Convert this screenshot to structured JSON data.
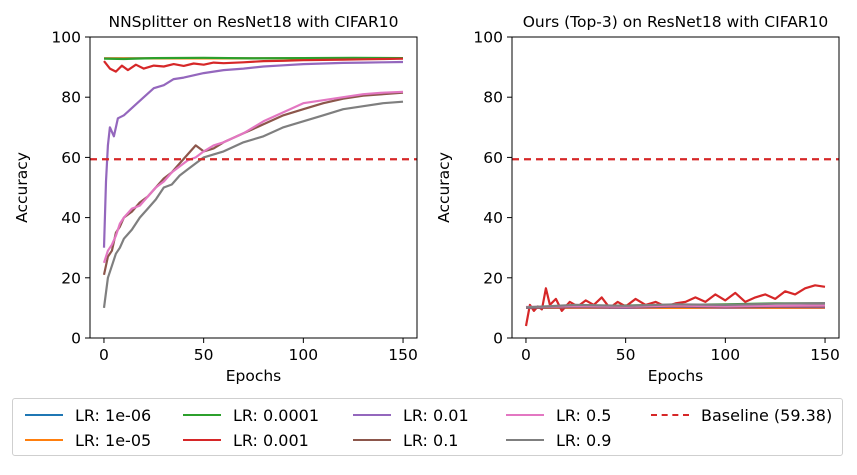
{
  "chart_data": [
    {
      "type": "line",
      "title": "NNSplitter on ResNet18 with CIFAR10",
      "xlabel": "Epochs",
      "ylabel": "Accuracy",
      "xlim": [
        -7,
        157
      ],
      "ylim": [
        0,
        100
      ],
      "xticks": [
        0,
        50,
        100,
        150
      ],
      "yticks": [
        0,
        20,
        40,
        60,
        80,
        100
      ],
      "baseline": {
        "label": "Baseline (59.38)",
        "value": 59.38,
        "color": "#d62728"
      },
      "series": [
        {
          "name": "LR: 1e-06",
          "color": "#1f77b4",
          "x": [
            0,
            150
          ],
          "y": [
            92.9,
            92.9
          ]
        },
        {
          "name": "LR: 1e-05",
          "color": "#ff7f0e",
          "x": [
            0,
            150
          ],
          "y": [
            92.9,
            92.9
          ]
        },
        {
          "name": "LR: 0.0001",
          "color": "#2ca02c",
          "x": [
            0,
            10,
            25,
            50,
            75,
            100,
            125,
            150
          ],
          "y": [
            92.8,
            92.7,
            93.0,
            93.1,
            92.9,
            93.0,
            93.1,
            93.0
          ]
        },
        {
          "name": "LR: 0.001",
          "color": "#d62728",
          "x": [
            0,
            3,
            6,
            9,
            12,
            16,
            20,
            25,
            30,
            35,
            40,
            45,
            50,
            55,
            60,
            70,
            80,
            90,
            100,
            110,
            120,
            130,
            140,
            150
          ],
          "y": [
            92.0,
            89.5,
            88.5,
            90.5,
            89.0,
            90.8,
            89.5,
            90.5,
            90.2,
            91.0,
            90.4,
            91.2,
            90.8,
            91.5,
            91.3,
            91.6,
            92.0,
            92.1,
            92.3,
            92.4,
            92.5,
            92.6,
            92.7,
            92.8
          ]
        },
        {
          "name": "LR: 0.01",
          "color": "#9467bd",
          "x": [
            0,
            1,
            2,
            3,
            5,
            7,
            10,
            15,
            20,
            25,
            30,
            35,
            40,
            50,
            60,
            70,
            80,
            90,
            100,
            110,
            120,
            130,
            140,
            150
          ],
          "y": [
            30,
            52,
            64,
            70,
            67,
            73,
            74,
            77,
            80,
            83,
            84,
            86,
            86.5,
            88,
            89,
            89.5,
            90.2,
            90.6,
            91.0,
            91.2,
            91.4,
            91.5,
            91.6,
            91.7
          ]
        },
        {
          "name": "LR: 0.1",
          "color": "#8c564b",
          "x": [
            0,
            2,
            4,
            6,
            8,
            10,
            14,
            18,
            22,
            26,
            30,
            34,
            38,
            42,
            46,
            50,
            55,
            60,
            70,
            80,
            90,
            100,
            110,
            120,
            130,
            140,
            150
          ],
          "y": [
            21,
            27,
            29,
            35,
            37,
            40,
            42,
            45,
            47,
            50,
            53,
            55,
            58,
            61,
            64,
            62,
            63,
            65,
            68,
            71,
            74,
            76,
            78,
            79.5,
            80.5,
            81.0,
            81.5
          ]
        },
        {
          "name": "LR: 0.5",
          "color": "#e377c2",
          "x": [
            0,
            2,
            4,
            6,
            8,
            10,
            14,
            18,
            22,
            26,
            30,
            34,
            38,
            42,
            46,
            50,
            55,
            60,
            70,
            80,
            90,
            100,
            110,
            120,
            130,
            140,
            150
          ],
          "y": [
            25,
            29,
            31,
            34,
            38,
            40,
            43,
            44,
            47,
            50,
            52,
            55,
            57,
            59,
            60,
            62,
            64,
            65,
            68,
            72,
            75,
            78,
            79,
            80,
            81.0,
            81.5,
            81.8
          ]
        },
        {
          "name": "LR: 0.9",
          "color": "#7f7f7f",
          "x": [
            0,
            2,
            4,
            6,
            8,
            10,
            14,
            18,
            22,
            26,
            30,
            34,
            38,
            42,
            46,
            50,
            55,
            60,
            70,
            80,
            90,
            100,
            110,
            120,
            130,
            140,
            150
          ],
          "y": [
            10,
            20,
            24,
            28,
            30,
            33,
            36,
            40,
            43,
            46,
            50,
            51,
            54,
            56,
            58,
            60,
            61,
            62,
            65,
            67,
            70,
            72,
            74,
            76,
            77,
            78,
            78.5
          ]
        }
      ]
    },
    {
      "type": "line",
      "title": "Ours (Top-3) on ResNet18 with CIFAR10",
      "xlabel": "Epochs",
      "ylabel": "Accuracy",
      "xlim": [
        -7,
        157
      ],
      "ylim": [
        0,
        100
      ],
      "xticks": [
        0,
        50,
        100,
        150
      ],
      "yticks": [
        0,
        20,
        40,
        60,
        80,
        100
      ],
      "baseline": {
        "label": "Baseline (59.38)",
        "value": 59.38,
        "color": "#d62728"
      },
      "series": [
        {
          "name": "LR: 1e-06",
          "color": "#1f77b4",
          "x": [
            0,
            150
          ],
          "y": [
            10.0,
            10.0
          ]
        },
        {
          "name": "LR: 1e-05",
          "color": "#ff7f0e",
          "x": [
            0,
            150
          ],
          "y": [
            10.0,
            10.0
          ]
        },
        {
          "name": "LR: 0.0001",
          "color": "#2ca02c",
          "x": [
            0,
            25,
            50,
            75,
            100,
            125,
            150
          ],
          "y": [
            10.2,
            10.5,
            10.8,
            11.0,
            11.2,
            11.5,
            11.5
          ]
        },
        {
          "name": "LR: 0.001",
          "color": "#d62728",
          "x": [
            0,
            2,
            4,
            6,
            8,
            10,
            12,
            15,
            18,
            22,
            26,
            30,
            34,
            38,
            42,
            46,
            50,
            55,
            60,
            65,
            70,
            75,
            80,
            85,
            90,
            95,
            100,
            105,
            110,
            115,
            120,
            125,
            130,
            135,
            140,
            145,
            150
          ],
          "y": [
            4.0,
            11.0,
            9.0,
            10.5,
            9.5,
            16.5,
            11.0,
            13.0,
            9.0,
            12.0,
            10.5,
            12.5,
            11.0,
            13.5,
            10.0,
            12.0,
            10.5,
            13.0,
            11.0,
            12.0,
            10.5,
            11.5,
            12.0,
            13.5,
            12.0,
            14.5,
            12.5,
            15.0,
            12.0,
            13.5,
            14.5,
            13.0,
            15.5,
            14.5,
            16.5,
            17.5,
            17.0
          ]
        },
        {
          "name": "LR: 0.01",
          "color": "#9467bd",
          "x": [
            0,
            25,
            50,
            75,
            100,
            125,
            150
          ],
          "y": [
            10.0,
            10.2,
            10.0,
            10.4,
            10.1,
            10.3,
            10.2
          ]
        },
        {
          "name": "LR: 0.1",
          "color": "#8c564b",
          "x": [
            0,
            25,
            50,
            75,
            100,
            125,
            150
          ],
          "y": [
            10.1,
            10.3,
            10.2,
            10.5,
            10.3,
            10.4,
            10.5
          ]
        },
        {
          "name": "LR: 0.5",
          "color": "#e377c2",
          "x": [
            0,
            25,
            50,
            75,
            100,
            125,
            150
          ],
          "y": [
            10.3,
            10.6,
            10.4,
            10.8,
            10.5,
            10.7,
            10.8
          ]
        },
        {
          "name": "LR: 0.9",
          "color": "#7f7f7f",
          "x": [
            0,
            25,
            50,
            75,
            100,
            125,
            150
          ],
          "y": [
            10.2,
            11.0,
            10.7,
            11.2,
            11.0,
            11.4,
            11.6
          ]
        }
      ]
    }
  ],
  "legend": {
    "items": [
      {
        "label": "LR: 1e-06",
        "color": "#1f77b4",
        "style": "solid"
      },
      {
        "label": "LR: 1e-05",
        "color": "#ff7f0e",
        "style": "solid"
      },
      {
        "label": "LR: 0.0001",
        "color": "#2ca02c",
        "style": "solid"
      },
      {
        "label": "LR: 0.001",
        "color": "#d62728",
        "style": "solid"
      },
      {
        "label": "LR: 0.01",
        "color": "#9467bd",
        "style": "solid"
      },
      {
        "label": "LR: 0.1",
        "color": "#8c564b",
        "style": "solid"
      },
      {
        "label": "LR: 0.5",
        "color": "#e377c2",
        "style": "solid"
      },
      {
        "label": "LR: 0.9",
        "color": "#7f7f7f",
        "style": "solid"
      },
      {
        "label": "Baseline (59.38)",
        "color": "#d62728",
        "style": "dashed"
      }
    ]
  }
}
